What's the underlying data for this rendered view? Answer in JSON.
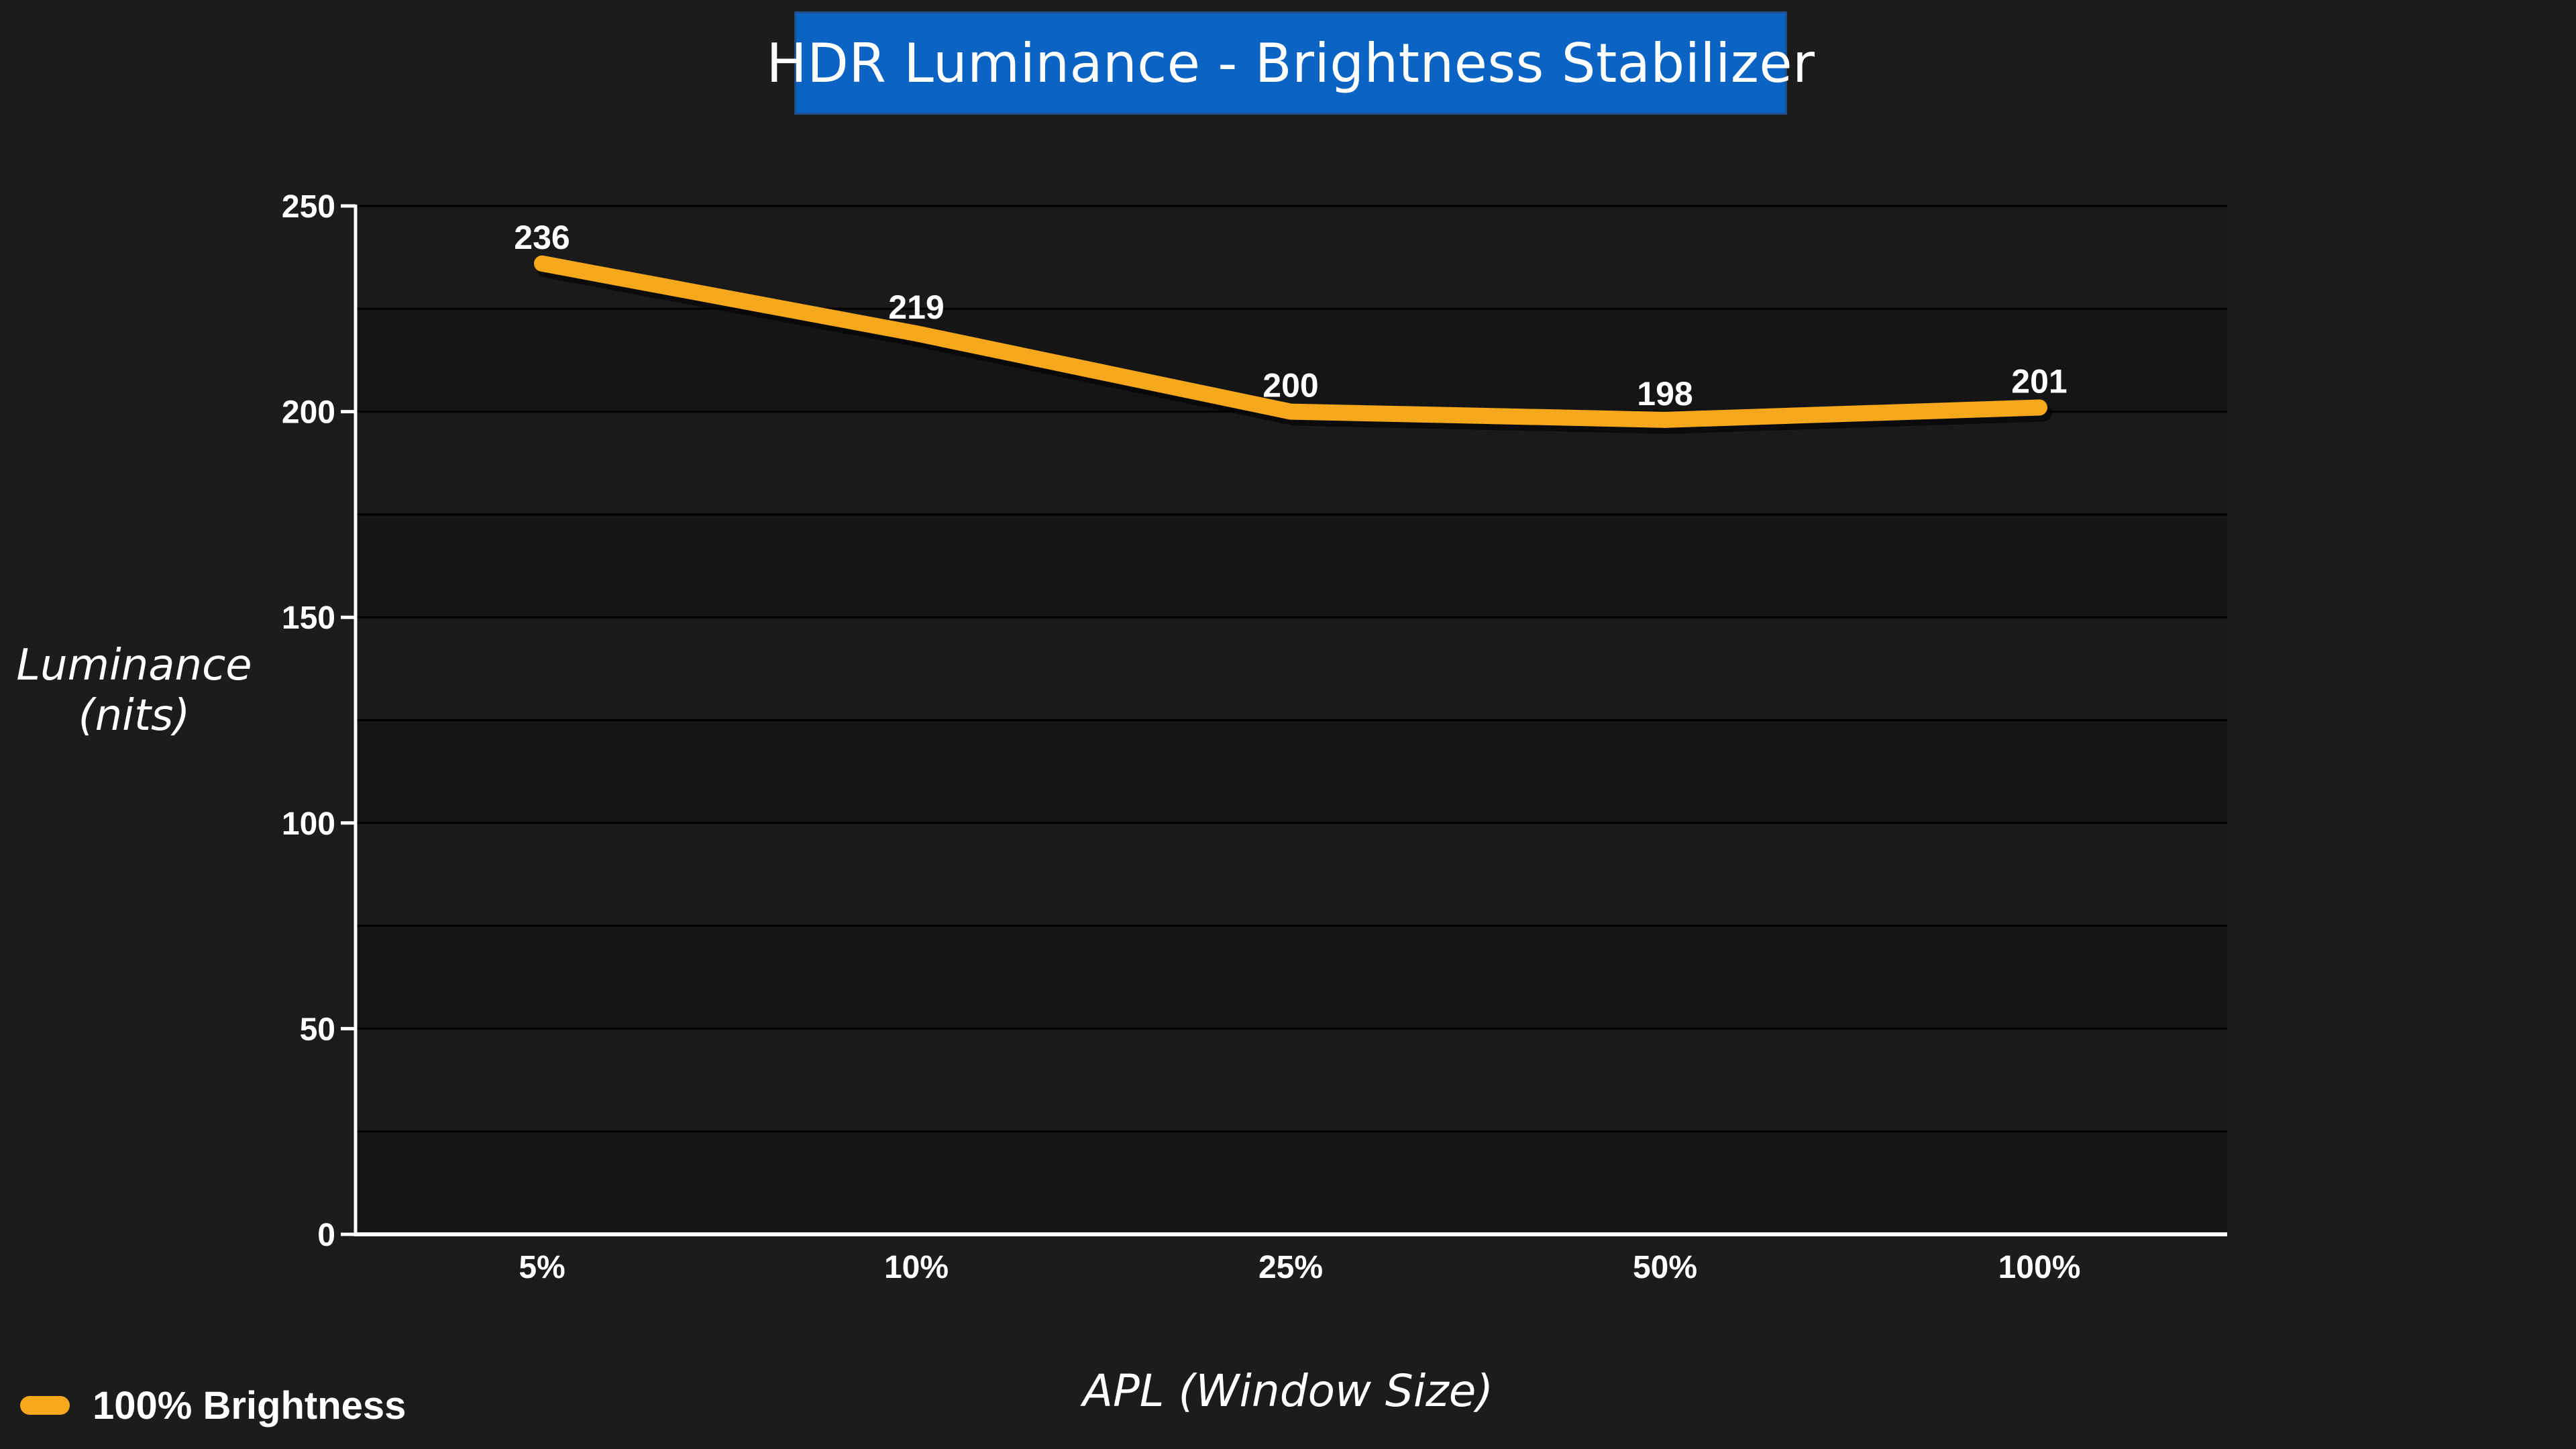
{
  "title": "HDR Luminance - Brightness Stabilizer",
  "colors": {
    "background": "#1c1c1c",
    "title_bg": "#0b63c4",
    "series_line": "#f5a81c",
    "text": "#ffffff"
  },
  "chart_data": {
    "type": "line",
    "title": "HDR Luminance - Brightness Stabilizer",
    "xlabel": "APL (Window Size)",
    "ylabel_lines": [
      "Luminance",
      "(nits)"
    ],
    "categories": [
      "5%",
      "10%",
      "25%",
      "50%",
      "100%"
    ],
    "series": [
      {
        "name": "100% Brightness",
        "values": [
          236,
          219,
          200,
          198,
          201
        ]
      }
    ],
    "ylim": [
      0,
      250
    ],
    "y_ticks": [
      0,
      50,
      100,
      150,
      200,
      250
    ],
    "grid": true,
    "legend_position": "bottom-left",
    "data_labels": true
  }
}
